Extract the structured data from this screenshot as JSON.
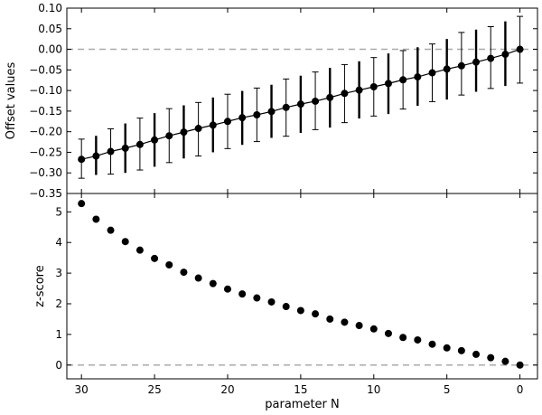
{
  "chart_data": [
    {
      "type": "scatter",
      "panel": "top",
      "xlabel": "",
      "ylabel": "Offset values",
      "xlim": [
        31,
        -1.2
      ],
      "ylim": [
        -0.35,
        0.1
      ],
      "yticks": [
        0.1,
        0.05,
        0.0,
        -0.05,
        -0.1,
        -0.15,
        -0.2,
        -0.25,
        -0.3,
        -0.35
      ],
      "ytick_labels": [
        "0.10",
        "0.05",
        "0.00",
        "−0.05",
        "−0.10",
        "−0.15",
        "−0.20",
        "−0.25",
        "−0.30",
        "−0.35"
      ],
      "reference_line_y": 0.0,
      "connected": true,
      "x": [
        30,
        29,
        28,
        27,
        26,
        25,
        24,
        23,
        22,
        21,
        20,
        19,
        18,
        17,
        16,
        15,
        14,
        13,
        12,
        11,
        10,
        9,
        8,
        7,
        6,
        5,
        4,
        3,
        2,
        1,
        0
      ],
      "y": [
        -0.267,
        -0.259,
        -0.248,
        -0.24,
        -0.231,
        -0.22,
        -0.21,
        -0.201,
        -0.192,
        -0.184,
        -0.175,
        -0.166,
        -0.159,
        -0.151,
        -0.141,
        -0.133,
        -0.126,
        -0.117,
        -0.107,
        -0.099,
        -0.091,
        -0.083,
        -0.074,
        -0.067,
        -0.057,
        -0.048,
        -0.04,
        -0.031,
        -0.022,
        -0.012,
        0.0
      ],
      "y_lower": [
        -0.313,
        -0.305,
        -0.303,
        -0.3,
        -0.293,
        -0.285,
        -0.275,
        -0.265,
        -0.259,
        -0.25,
        -0.241,
        -0.232,
        -0.224,
        -0.215,
        -0.211,
        -0.203,
        -0.195,
        -0.19,
        -0.178,
        -0.168,
        -0.162,
        -0.157,
        -0.145,
        -0.137,
        -0.127,
        -0.122,
        -0.111,
        -0.103,
        -0.095,
        -0.089,
        -0.082
      ],
      "y_upper": [
        -0.218,
        -0.21,
        -0.193,
        -0.18,
        -0.167,
        -0.155,
        -0.144,
        -0.136,
        -0.129,
        -0.117,
        -0.109,
        -0.101,
        -0.094,
        -0.086,
        -0.072,
        -0.064,
        -0.055,
        -0.045,
        -0.037,
        -0.029,
        -0.02,
        -0.01,
        -0.003,
        0.005,
        0.013,
        0.025,
        0.041,
        0.048,
        0.055,
        0.068,
        0.08
      ]
    },
    {
      "type": "scatter",
      "panel": "bottom",
      "xlabel": "parameter N",
      "ylabel": "z-score",
      "xlim": [
        31,
        -1.2
      ],
      "ylim": [
        -0.45,
        5.6
      ],
      "xticks": [
        30,
        25,
        20,
        15,
        10,
        5,
        0
      ],
      "xtick_labels": [
        "30",
        "25",
        "20",
        "15",
        "10",
        "5",
        "0"
      ],
      "yticks": [
        5,
        4,
        3,
        2,
        1,
        0
      ],
      "ytick_labels": [
        "5",
        "4",
        "3",
        "2",
        "1",
        "0"
      ],
      "reference_line_y": 0,
      "connected": false,
      "x": [
        30,
        29,
        28,
        27,
        26,
        25,
        24,
        23,
        22,
        21,
        20,
        19,
        18,
        17,
        16,
        15,
        14,
        13,
        12,
        11,
        10,
        9,
        8,
        7,
        6,
        5,
        4,
        3,
        2,
        1,
        0
      ],
      "y": [
        5.27,
        4.76,
        4.4,
        4.03,
        3.75,
        3.48,
        3.27,
        3.03,
        2.84,
        2.66,
        2.48,
        2.32,
        2.19,
        2.06,
        1.91,
        1.78,
        1.67,
        1.5,
        1.4,
        1.29,
        1.18,
        1.03,
        0.9,
        0.82,
        0.68,
        0.56,
        0.47,
        0.35,
        0.24,
        0.12,
        0.0
      ]
    }
  ],
  "colors": {
    "marker": "#000000",
    "line": "#000000",
    "reference_line": "#aaaaaa",
    "frame": "#000000"
  }
}
